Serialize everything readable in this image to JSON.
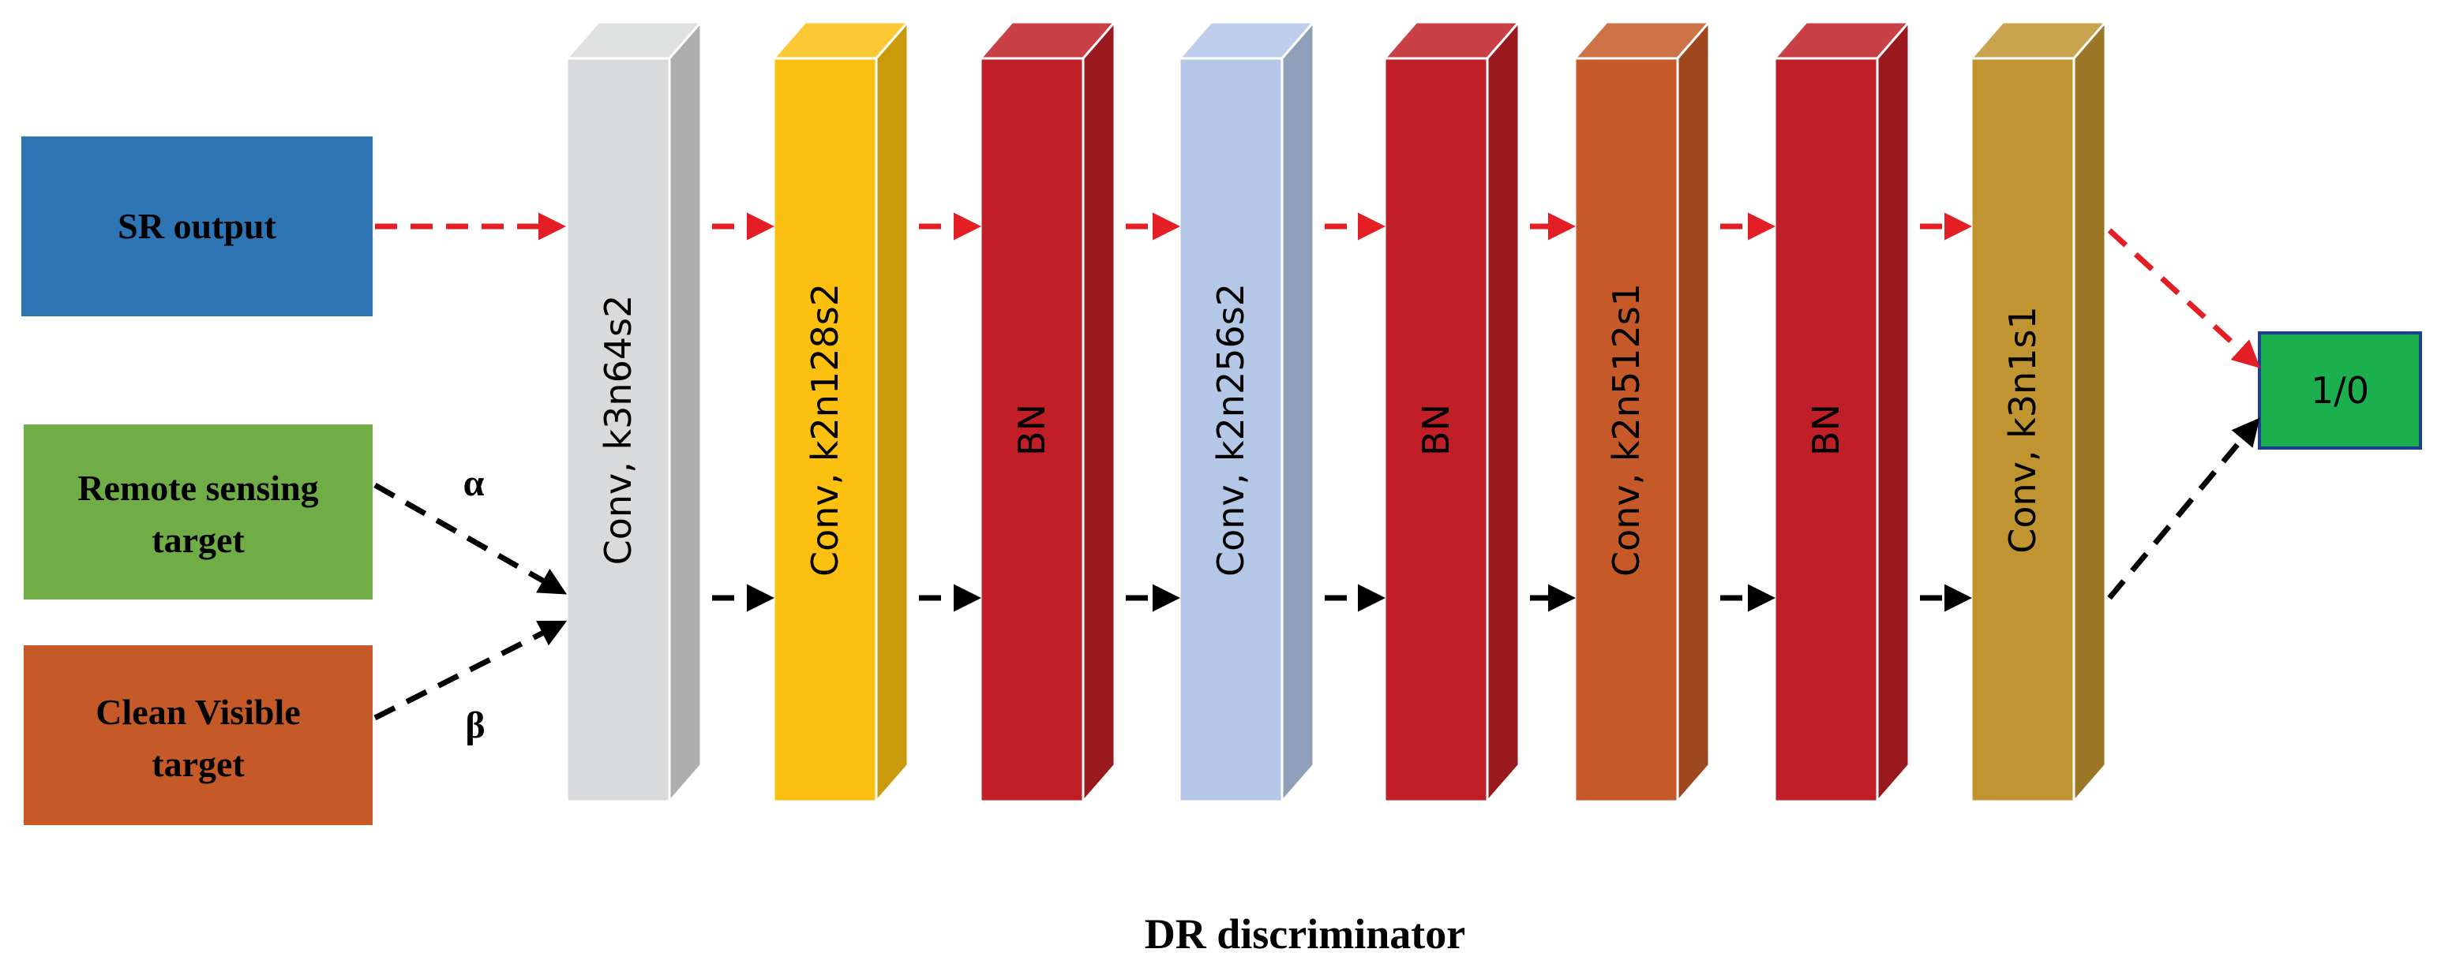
{
  "colors": {
    "sr_box": "#2E75B6",
    "remote_box": "#70AD47",
    "clean_box": "#C55A28",
    "output_box": "#1BAF4E",
    "output_border": "#1F3F8F",
    "red_arrow": "#E31E24",
    "black_arrow": "#000000"
  },
  "inputs": {
    "sr_output": "SR output",
    "remote_line1": "Remote sensing",
    "remote_line2": "target",
    "clean_line1": "Clean Visible",
    "clean_line2": "target",
    "alpha": "α",
    "beta": "β"
  },
  "layers": [
    {
      "label": "Conv, k3n64s2",
      "color": "#D9DADB",
      "icon": "conv-layer"
    },
    {
      "label": "Conv, k2n128s2",
      "color": "#FCC010",
      "icon": "conv-layer"
    },
    {
      "label": "BN",
      "color": "#C01F27",
      "icon": "batchnorm-layer"
    },
    {
      "label": "Conv, k2n256s2",
      "color": "#B4C7E7",
      "icon": "conv-layer"
    },
    {
      "label": "BN",
      "color": "#C01F27",
      "icon": "batchnorm-layer"
    },
    {
      "label": "Conv, k2n512s1",
      "color": "#C55A28",
      "icon": "conv-layer"
    },
    {
      "label": "BN",
      "color": "#C01F27",
      "icon": "batchnorm-layer"
    },
    {
      "label": "Conv, k3n1s1",
      "color": "#C09430",
      "icon": "conv-layer"
    }
  ],
  "output": {
    "label": "1/0"
  },
  "caption": "DR discriminator"
}
